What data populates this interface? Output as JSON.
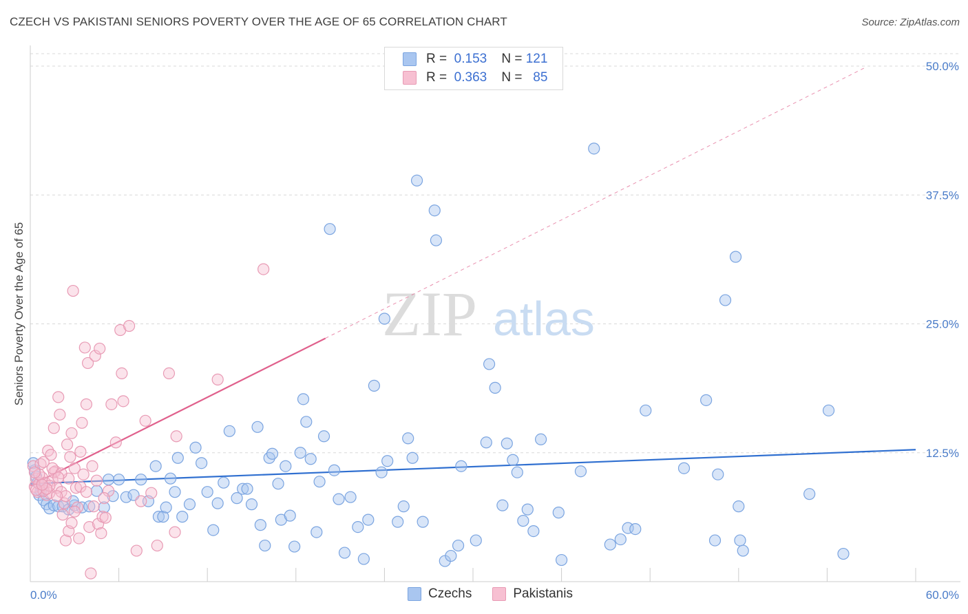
{
  "title": "CZECH VS PAKISTANI SENIORS POVERTY OVER THE AGE OF 65 CORRELATION CHART",
  "source": "Source: ZipAtlas.com",
  "watermark": {
    "zip": "ZIP",
    "atlas": "atlas"
  },
  "legend": {
    "rows": [
      {
        "r_label": "R =",
        "r_value": "0.153",
        "n_label": "N =",
        "n_value": "121",
        "color": "#a9c6f0",
        "border": "#7aa4e0"
      },
      {
        "r_label": "R =",
        "r_value": "0.363",
        "n_label": "N =",
        "n_value": "85",
        "color": "#f7c0d2",
        "border": "#e89ab4"
      }
    ]
  },
  "bottom_legend": [
    {
      "label": "Czechs",
      "color": "#a9c6f0",
      "border": "#7aa4e0"
    },
    {
      "label": "Pakistanis",
      "color": "#f7c0d2",
      "border": "#e89ab4"
    }
  ],
  "chart_data": {
    "type": "scatter",
    "title": "CZECH VS PAKISTANI SENIORS POVERTY OVER THE AGE OF 65 CORRELATION CHART",
    "xlabel": "",
    "ylabel": "Seniors Poverty Over the Age of 65",
    "xlim": [
      0,
      60
    ],
    "ylim": [
      0,
      50
    ],
    "x_tick_labels": [
      "0.0%",
      "60.0%"
    ],
    "y_ticks": [
      12.5,
      25.0,
      37.5,
      50.0
    ],
    "y_tick_labels": [
      "12.5%",
      "25.0%",
      "37.5%",
      "50.0%"
    ],
    "grid": true,
    "legend_position": "top-center",
    "series": [
      {
        "name": "Czechs",
        "color": "#7aa4e0",
        "fill": "#a9c6f0",
        "trend": {
          "x": [
            0,
            60
          ],
          "y": [
            9.5,
            12.8
          ],
          "color": "#2f6fd0"
        },
        "points": [
          [
            0.3,
            10.8
          ],
          [
            0.4,
            10.2
          ],
          [
            0.5,
            9.6
          ],
          [
            0.6,
            8.4
          ],
          [
            0.8,
            9.0
          ],
          [
            0.9,
            7.9
          ],
          [
            1.1,
            7.5
          ],
          [
            1.3,
            7.1
          ],
          [
            1.6,
            7.4
          ],
          [
            1.9,
            7.3
          ],
          [
            2.2,
            7.3
          ],
          [
            2.6,
            7.0
          ],
          [
            3.0,
            7.4
          ],
          [
            3.5,
            7.2
          ],
          [
            4.0,
            7.3
          ],
          [
            4.5,
            8.8
          ],
          [
            5.0,
            7.2
          ],
          [
            5.3,
            9.9
          ],
          [
            5.6,
            8.3
          ],
          [
            6.0,
            9.9
          ],
          [
            6.5,
            8.2
          ],
          [
            7.0,
            8.4
          ],
          [
            7.5,
            9.9
          ],
          [
            8.0,
            7.8
          ],
          [
            8.5,
            11.2
          ],
          [
            8.7,
            6.3
          ],
          [
            9.0,
            6.3
          ],
          [
            9.2,
            7.2
          ],
          [
            9.5,
            10.0
          ],
          [
            9.8,
            8.7
          ],
          [
            10.0,
            12.0
          ],
          [
            10.3,
            6.3
          ],
          [
            10.8,
            7.5
          ],
          [
            11.2,
            13.0
          ],
          [
            11.6,
            11.5
          ],
          [
            12.0,
            8.7
          ],
          [
            12.4,
            5.0
          ],
          [
            12.7,
            7.6
          ],
          [
            13.1,
            9.6
          ],
          [
            13.5,
            14.6
          ],
          [
            14.0,
            8.1
          ],
          [
            14.4,
            9.0
          ],
          [
            14.7,
            9.0
          ],
          [
            15.0,
            7.5
          ],
          [
            15.4,
            15.0
          ],
          [
            15.6,
            5.5
          ],
          [
            15.9,
            3.5
          ],
          [
            16.2,
            12.0
          ],
          [
            16.4,
            12.4
          ],
          [
            16.8,
            9.5
          ],
          [
            17.0,
            6.0
          ],
          [
            17.3,
            11.2
          ],
          [
            17.6,
            6.4
          ],
          [
            17.9,
            3.4
          ],
          [
            18.3,
            12.5
          ],
          [
            18.5,
            17.7
          ],
          [
            18.7,
            15.5
          ],
          [
            19.0,
            11.9
          ],
          [
            19.4,
            4.8
          ],
          [
            19.6,
            9.7
          ],
          [
            19.9,
            14.1
          ],
          [
            20.3,
            34.2
          ],
          [
            20.6,
            10.8
          ],
          [
            20.9,
            8.0
          ],
          [
            21.3,
            2.8
          ],
          [
            21.7,
            8.2
          ],
          [
            22.2,
            5.3
          ],
          [
            22.6,
            2.2
          ],
          [
            22.9,
            6.0
          ],
          [
            23.3,
            19.0
          ],
          [
            23.8,
            10.6
          ],
          [
            24.0,
            25.5
          ],
          [
            24.2,
            11.7
          ],
          [
            24.9,
            5.8
          ],
          [
            25.3,
            7.3
          ],
          [
            25.6,
            13.9
          ],
          [
            25.9,
            12.0
          ],
          [
            26.2,
            38.9
          ],
          [
            26.6,
            5.8
          ],
          [
            27.4,
            36.0
          ],
          [
            27.5,
            33.1
          ],
          [
            28.1,
            2.0
          ],
          [
            28.5,
            2.5
          ],
          [
            29.0,
            3.5
          ],
          [
            29.2,
            11.2
          ],
          [
            30.2,
            4.0
          ],
          [
            30.9,
            13.5
          ],
          [
            31.1,
            21.1
          ],
          [
            31.5,
            18.8
          ],
          [
            32.0,
            7.4
          ],
          [
            32.3,
            13.4
          ],
          [
            32.7,
            11.8
          ],
          [
            33.0,
            10.6
          ],
          [
            33.4,
            5.9
          ],
          [
            33.7,
            7.0
          ],
          [
            34.1,
            4.9
          ],
          [
            34.6,
            13.8
          ],
          [
            35.8,
            6.7
          ],
          [
            36.0,
            2.1
          ],
          [
            37.3,
            10.7
          ],
          [
            38.2,
            42.0
          ],
          [
            39.3,
            3.6
          ],
          [
            40.0,
            4.1
          ],
          [
            40.5,
            5.2
          ],
          [
            41.0,
            5.1
          ],
          [
            41.7,
            16.6
          ],
          [
            44.3,
            11.0
          ],
          [
            45.8,
            17.6
          ],
          [
            46.4,
            4.0
          ],
          [
            46.6,
            10.4
          ],
          [
            47.1,
            27.3
          ],
          [
            47.8,
            31.5
          ],
          [
            48.0,
            7.3
          ],
          [
            48.1,
            4.0
          ],
          [
            48.3,
            3.0
          ],
          [
            52.8,
            8.5
          ],
          [
            54.1,
            16.6
          ],
          [
            55.1,
            2.7
          ],
          [
            0.2,
            11.5
          ],
          [
            0.7,
            8.8
          ],
          [
            2.9,
            7.8
          ]
        ]
      },
      {
        "name": "Pakistanis",
        "color": "#e89ab4",
        "fill": "#f7c0d2",
        "trend": {
          "x": [
            0,
            20
          ],
          "y": [
            9.3,
            23.6
          ],
          "color": "#e0608c",
          "dashed_extension": {
            "x": [
              20,
              56.5
            ],
            "y": [
              23.6,
              49.8
            ]
          }
        },
        "points": [
          [
            0.2,
            11.2
          ],
          [
            0.3,
            9.2
          ],
          [
            0.4,
            10.0
          ],
          [
            0.5,
            8.7
          ],
          [
            0.6,
            9.5
          ],
          [
            0.7,
            11.4
          ],
          [
            0.8,
            10.1
          ],
          [
            0.9,
            11.6
          ],
          [
            1.0,
            9.6
          ],
          [
            1.1,
            8.4
          ],
          [
            1.2,
            12.7
          ],
          [
            1.3,
            8.6
          ],
          [
            1.4,
            12.3
          ],
          [
            1.5,
            9.8
          ],
          [
            1.6,
            14.9
          ],
          [
            1.7,
            10.7
          ],
          [
            1.8,
            9.1
          ],
          [
            1.9,
            17.9
          ],
          [
            2.0,
            16.2
          ],
          [
            2.1,
            8.7
          ],
          [
            2.2,
            6.5
          ],
          [
            2.3,
            7.6
          ],
          [
            2.4,
            4.0
          ],
          [
            2.5,
            13.3
          ],
          [
            2.6,
            4.9
          ],
          [
            2.7,
            12.1
          ],
          [
            2.8,
            14.4
          ],
          [
            2.9,
            28.2
          ],
          [
            3.0,
            11.0
          ],
          [
            3.1,
            9.1
          ],
          [
            3.2,
            7.2
          ],
          [
            3.3,
            4.2
          ],
          [
            3.4,
            9.2
          ],
          [
            3.5,
            15.4
          ],
          [
            3.6,
            10.4
          ],
          [
            3.7,
            22.7
          ],
          [
            3.8,
            17.2
          ],
          [
            3.9,
            21.2
          ],
          [
            4.0,
            5.3
          ],
          [
            4.1,
            0.8
          ],
          [
            4.2,
            11.2
          ],
          [
            4.4,
            21.9
          ],
          [
            4.5,
            9.8
          ],
          [
            4.6,
            5.6
          ],
          [
            4.7,
            22.6
          ],
          [
            4.8,
            4.7
          ],
          [
            4.9,
            6.3
          ],
          [
            5.1,
            6.2
          ],
          [
            5.3,
            8.8
          ],
          [
            5.5,
            17.2
          ],
          [
            5.8,
            13.5
          ],
          [
            6.1,
            24.4
          ],
          [
            6.2,
            20.2
          ],
          [
            6.3,
            17.5
          ],
          [
            6.7,
            24.8
          ],
          [
            7.2,
            3.0
          ],
          [
            7.5,
            7.8
          ],
          [
            7.8,
            15.6
          ],
          [
            8.2,
            8.6
          ],
          [
            8.6,
            3.5
          ],
          [
            9.4,
            20.2
          ],
          [
            9.8,
            4.8
          ],
          [
            9.9,
            14.1
          ],
          [
            12.7,
            19.6
          ],
          [
            15.8,
            30.3
          ],
          [
            0.6,
            10.4
          ],
          [
            0.9,
            8.8
          ],
          [
            1.3,
            9.3
          ],
          [
            1.6,
            10.6
          ],
          [
            2.4,
            8.3
          ],
          [
            1.1,
            9.0
          ],
          [
            1.8,
            8.3
          ],
          [
            3.0,
            6.8
          ],
          [
            2.6,
            10.0
          ],
          [
            3.8,
            8.7
          ],
          [
            4.3,
            7.3
          ],
          [
            0.4,
            8.9
          ],
          [
            1.5,
            11.0
          ],
          [
            2.1,
            10.5
          ],
          [
            0.8,
            9.4
          ],
          [
            1.9,
            10.1
          ],
          [
            3.4,
            12.6
          ],
          [
            0.3,
            10.6
          ],
          [
            5.0,
            8.1
          ],
          [
            2.8,
            5.7
          ]
        ]
      }
    ]
  }
}
